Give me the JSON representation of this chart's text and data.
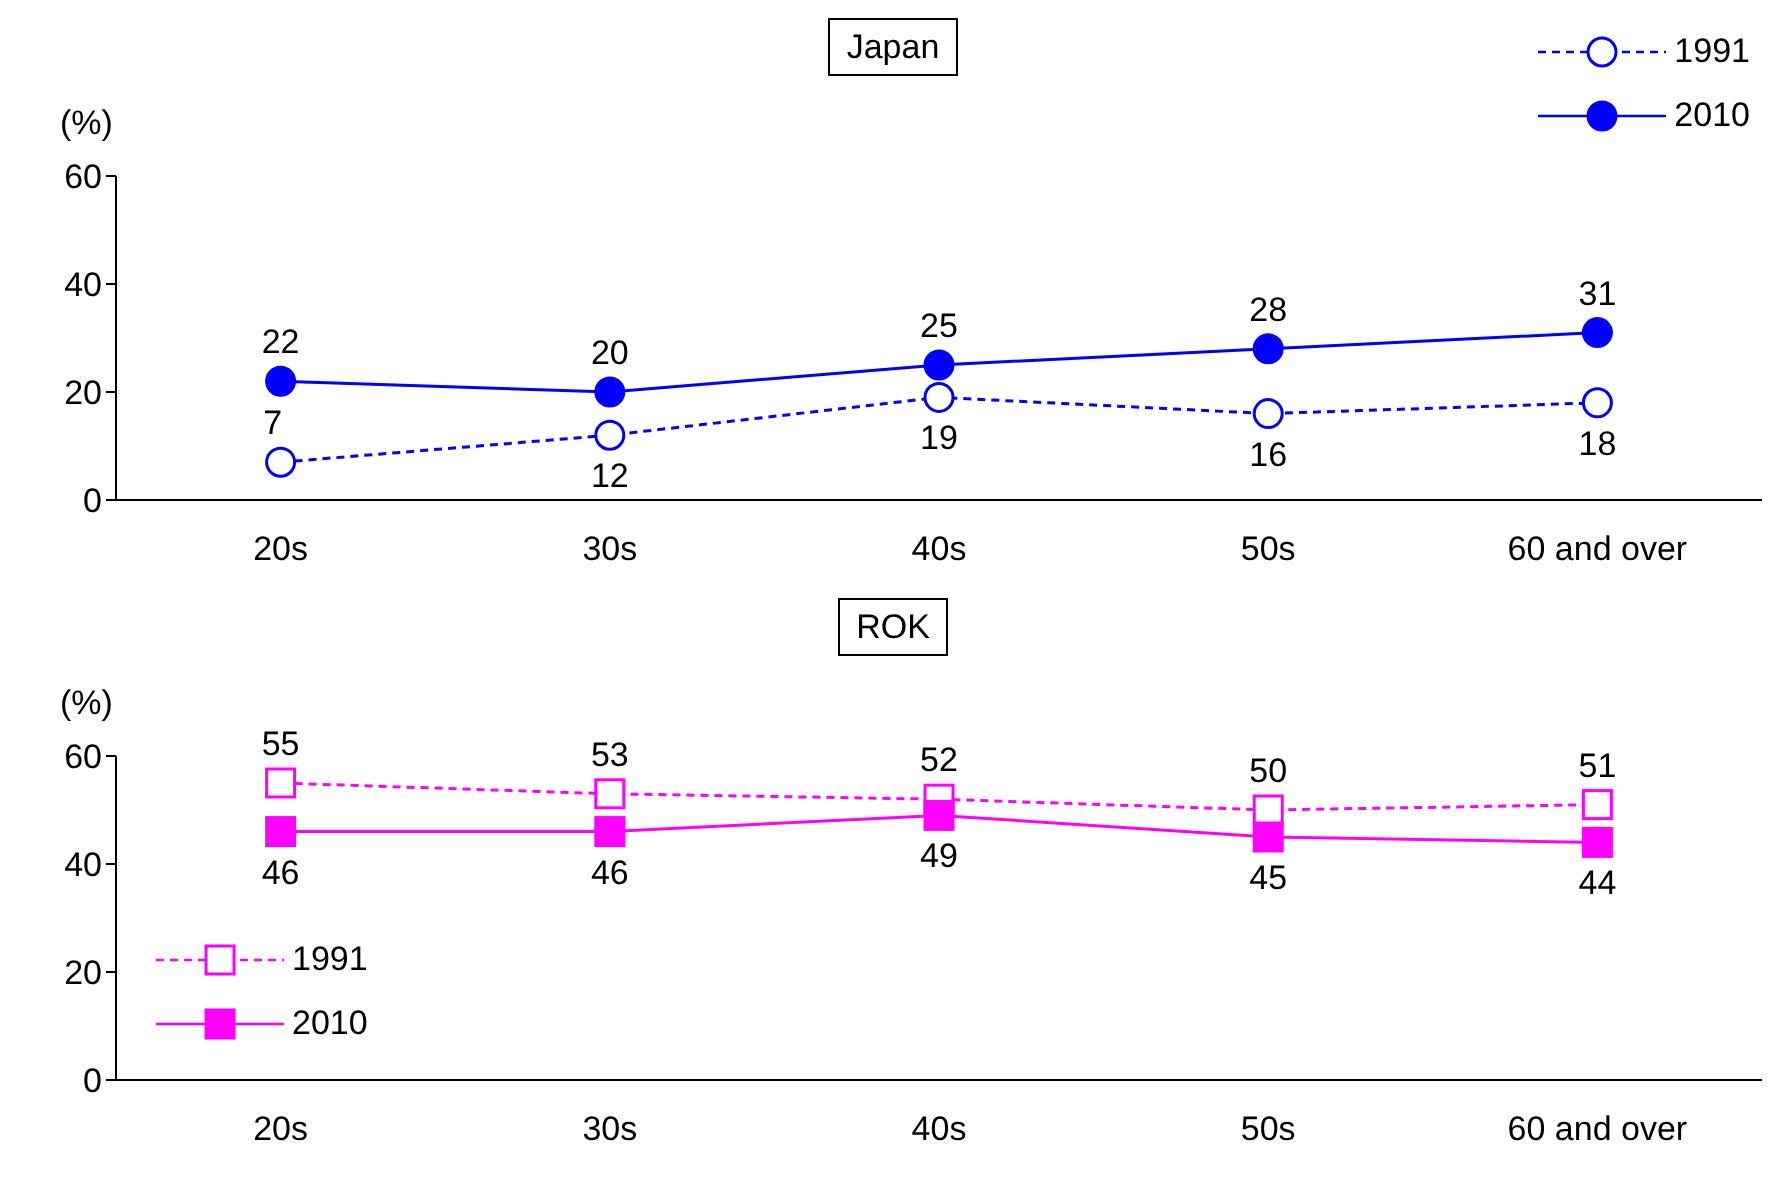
{
  "chart_data": [
    {
      "type": "line",
      "title": "Japan",
      "ylabel": "(%)",
      "categories": [
        "20s",
        "30s",
        "40s",
        "50s",
        "60 and over"
      ],
      "ylim": [
        0,
        60
      ],
      "yticks": [
        0,
        20,
        40,
        60
      ],
      "grid": false,
      "legend": "top right",
      "data_labels": true,
      "marker": "circle",
      "series": [
        {
          "name": "1991",
          "color": "#0000ff",
          "line_style": "dashed",
          "values": [
            7,
            12,
            19,
            16,
            18
          ]
        },
        {
          "name": "2010",
          "color": "#0000ff",
          "line_style": "solid",
          "values": [
            22,
            20,
            25,
            28,
            31
          ]
        }
      ]
    },
    {
      "type": "line",
      "title": "ROK",
      "ylabel": "(%)",
      "categories": [
        "20s",
        "30s",
        "40s",
        "50s",
        "60 and over"
      ],
      "ylim": [
        0,
        60
      ],
      "yticks": [
        0,
        20,
        40,
        60
      ],
      "grid": false,
      "legend": "bottom left",
      "data_labels": true,
      "marker": "square",
      "series": [
        {
          "name": "1991",
          "color": "#ff00ff",
          "line_style": "dashed",
          "values": [
            55,
            53,
            52,
            50,
            51
          ]
        },
        {
          "name": "2010",
          "color": "#ff00ff",
          "line_style": "solid",
          "values": [
            46,
            46,
            49,
            45,
            44
          ]
        }
      ]
    }
  ]
}
